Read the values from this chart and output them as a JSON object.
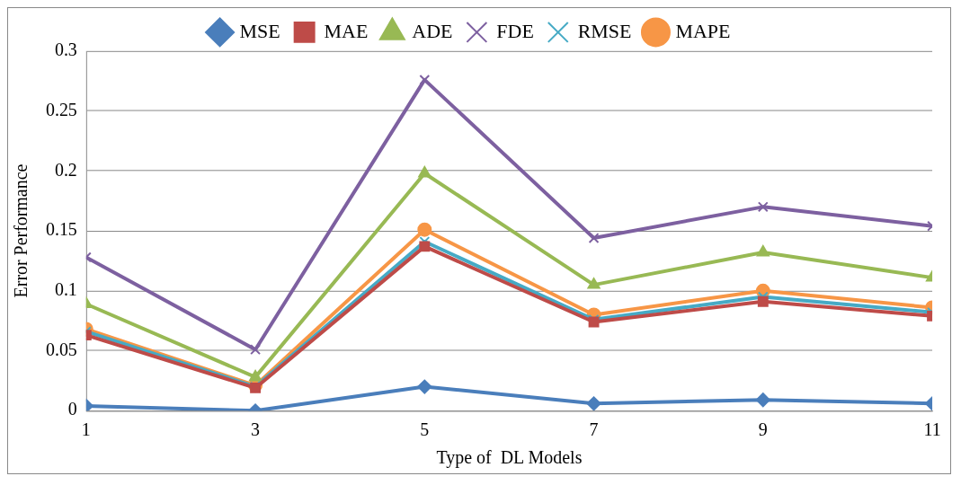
{
  "chart_data": {
    "type": "line",
    "xlabel": "Type of  DL Models",
    "ylabel": "Error Performance",
    "x": [
      1,
      3,
      5,
      7,
      9,
      11
    ],
    "xlim": [
      1,
      11
    ],
    "xticks": [
      1,
      3,
      5,
      7,
      9,
      11
    ],
    "ylim": [
      0,
      0.3
    ],
    "yticks": [
      0,
      0.05,
      0.1,
      0.15,
      0.2,
      0.25,
      0.3
    ],
    "grid": "y",
    "legend": "top",
    "line_style": "solid",
    "series": [
      {
        "name": "MSE",
        "color": "#4a7ebb",
        "marker": "diamond",
        "values": [
          0.004,
          0.0,
          0.02,
          0.006,
          0.009,
          0.006
        ]
      },
      {
        "name": "MAE",
        "color": "#be4b48",
        "marker": "square",
        "values": [
          0.063,
          0.019,
          0.137,
          0.074,
          0.091,
          0.079
        ]
      },
      {
        "name": "ADE",
        "color": "#98b954",
        "marker": "triangle",
        "values": [
          0.089,
          0.028,
          0.198,
          0.105,
          0.132,
          0.111
        ]
      },
      {
        "name": "FDE",
        "color": "#7d60a0",
        "marker": "cross",
        "values": [
          0.128,
          0.051,
          0.276,
          0.144,
          0.17,
          0.154
        ]
      },
      {
        "name": "RMSE",
        "color": "#46aac5",
        "marker": "cross",
        "values": [
          0.066,
          0.02,
          0.141,
          0.076,
          0.095,
          0.082
        ]
      },
      {
        "name": "MAPE",
        "color": "#f79646",
        "marker": "circle",
        "values": [
          0.068,
          0.021,
          0.151,
          0.08,
          0.1,
          0.086
        ]
      }
    ]
  }
}
